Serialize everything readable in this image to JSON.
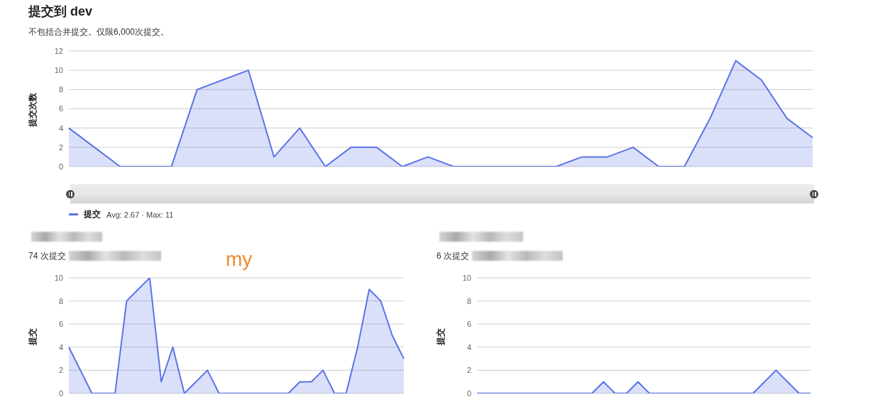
{
  "chart_data": [
    {
      "type": "area",
      "title": "提交到 dev",
      "subtitle": "不包括合并提交。仅限6,000次提交。",
      "ylabel": "提交次数",
      "categories": [
        null,
        null,
        null,
        null,
        null,
        null,
        null,
        null,
        null,
        null,
        null,
        null,
        null,
        null,
        null,
        null,
        null,
        null,
        null,
        null,
        null,
        null,
        null,
        null,
        null,
        null,
        null,
        null,
        null,
        null
      ],
      "series": [
        {
          "name": "提交",
          "color": "#5b73e8",
          "values": [
            4,
            2,
            0,
            0,
            0,
            8,
            9,
            10,
            1,
            4,
            0,
            2,
            2,
            0,
            1,
            0,
            0,
            0,
            0,
            0,
            1,
            1,
            2,
            0,
            0,
            5,
            11,
            9,
            5,
            3
          ]
        }
      ],
      "ylim": [
        0,
        12
      ],
      "yticks": [
        0,
        2,
        4,
        6,
        8,
        10,
        12
      ],
      "grid": "y",
      "tick_labels": "y",
      "legend": "bottom left",
      "annotations": [
        "Avg: 2.67 · Max: 11"
      ]
    },
    {
      "type": "area",
      "subtitle": "74 次提交",
      "ylabel": "提交",
      "categories": [
        null,
        null,
        null,
        null,
        null,
        null,
        null,
        null,
        null,
        null,
        null,
        null,
        null,
        null,
        null,
        null,
        null,
        null,
        null,
        null,
        null,
        null,
        null,
        null,
        null,
        null,
        null,
        null,
        null,
        null
      ],
      "series": [
        {
          "color": "#5b73e8",
          "values": [
            4,
            2,
            0,
            0,
            0,
            8,
            9,
            10,
            1,
            4,
            0,
            1,
            2,
            0,
            0,
            0,
            0,
            0,
            0,
            0,
            1,
            1,
            2,
            0,
            0,
            4,
            9,
            8,
            5,
            3
          ]
        }
      ],
      "ylim": [
        0,
        10
      ],
      "yticks": [
        0,
        2,
        4,
        6,
        8,
        10
      ],
      "grid": "y",
      "tick_labels": "y",
      "annotations": [
        "my"
      ]
    },
    {
      "type": "area",
      "subtitle": "6 次提交",
      "ylabel": "提交",
      "categories": [
        null,
        null,
        null,
        null,
        null,
        null,
        null,
        null,
        null,
        null,
        null,
        null,
        null,
        null,
        null,
        null,
        null,
        null,
        null,
        null,
        null,
        null,
        null,
        null,
        null,
        null,
        null,
        null,
        null,
        null
      ],
      "series": [
        {
          "color": "#5b73e8",
          "values": [
            0,
            0,
            0,
            0,
            0,
            0,
            0,
            0,
            0,
            0,
            0,
            1,
            0,
            0,
            1,
            0,
            0,
            0,
            0,
            0,
            0,
            0,
            0,
            0,
            0,
            1,
            2,
            1,
            0,
            0
          ]
        }
      ],
      "ylim": [
        0,
        10
      ],
      "yticks": [
        0,
        2,
        4,
        6,
        8,
        10
      ],
      "grid": "y",
      "tick_labels": "y"
    }
  ]
}
